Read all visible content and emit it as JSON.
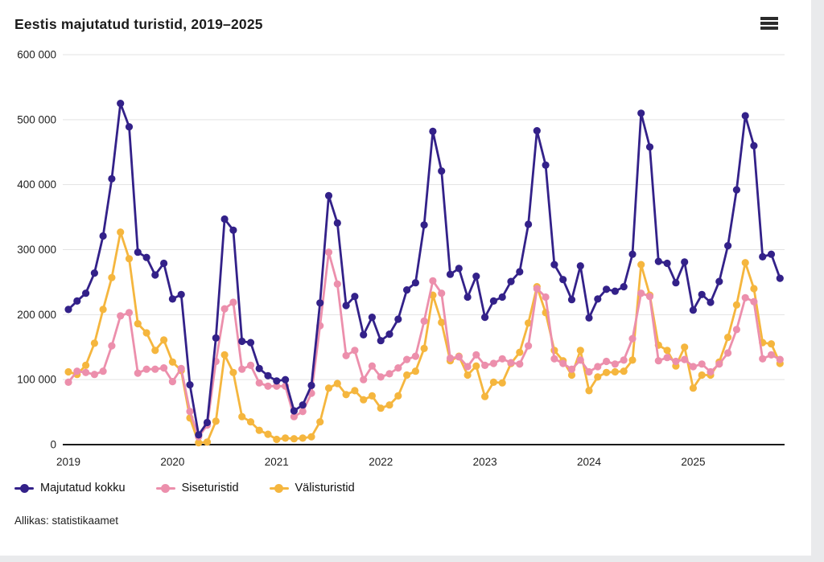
{
  "header": {
    "title": "Eestis majutatud turistid, 2019–2025",
    "menu_icon": "hamburger-icon"
  },
  "source_note": "Allikas: statistikaamet",
  "colors": {
    "total": "#332189",
    "domestic": "#ec8fac",
    "foreign": "#f5b63e",
    "grid": "#e3e3e3",
    "axis": "#1a1a1a",
    "tick_text": "#1f1f1f"
  },
  "legend": [
    {
      "label": "Majutatud kokku",
      "series": "total"
    },
    {
      "label": "Siseturistid",
      "series": "domestic"
    },
    {
      "label": "Välisturistid",
      "series": "foreign"
    }
  ],
  "chart_data": {
    "type": "line",
    "title": "Eestis majutatud turistid, 2019–2025",
    "x_unit": "month",
    "x_start": "2019-01",
    "x_end": "2025-11",
    "ylim": [
      0,
      600000
    ],
    "grid": "horizontal",
    "legend_position": "bottom",
    "y_ticks": [
      {
        "value": 0,
        "label": "0"
      },
      {
        "value": 100000,
        "label": "100 000"
      },
      {
        "value": 200000,
        "label": "200 000"
      },
      {
        "value": 300000,
        "label": "300 000"
      },
      {
        "value": 400000,
        "label": "400 000"
      },
      {
        "value": 500000,
        "label": "500 000"
      },
      {
        "value": 600000,
        "label": "600 000"
      }
    ],
    "x_ticks": [
      {
        "month_index": 0,
        "label": "2019"
      },
      {
        "month_index": 12,
        "label": "2020"
      },
      {
        "month_index": 24,
        "label": "2021"
      },
      {
        "month_index": 36,
        "label": "2022"
      },
      {
        "month_index": 48,
        "label": "2023"
      },
      {
        "month_index": 60,
        "label": "2024"
      },
      {
        "month_index": 72,
        "label": "2025"
      }
    ],
    "series": [
      {
        "name": "Majutatud kokku",
        "key": "total",
        "values": [
          208000,
          221000,
          233000,
          264000,
          321000,
          409000,
          525000,
          489000,
          296000,
          288000,
          261000,
          279000,
          224000,
          231000,
          92000,
          15000,
          34000,
          164000,
          347000,
          330000,
          159000,
          157000,
          117000,
          106000,
          98000,
          100000,
          52000,
          61000,
          91000,
          218000,
          383000,
          341000,
          214000,
          228000,
          169000,
          196000,
          160000,
          170000,
          193000,
          238000,
          249000,
          338000,
          482000,
          421000,
          262000,
          271000,
          227000,
          259000,
          196000,
          221000,
          227000,
          251000,
          266000,
          339000,
          483000,
          430000,
          277000,
          254000,
          223000,
          275000,
          195000,
          224000,
          239000,
          236000,
          243000,
          293000,
          510000,
          458000,
          282000,
          279000,
          249000,
          281000,
          207000,
          231000,
          219000,
          251000,
          306000,
          392000,
          506000,
          460000,
          289000,
          293000,
          256000
        ]
      },
      {
        "name": "Siseturistid",
        "key": "domestic",
        "values": [
          96000,
          113000,
          111000,
          108000,
          113000,
          152000,
          198000,
          203000,
          110000,
          116000,
          116000,
          118000,
          97000,
          117000,
          51000,
          12000,
          30000,
          128000,
          209000,
          219000,
          116000,
          122000,
          95000,
          90000,
          90000,
          90000,
          43000,
          51000,
          79000,
          183000,
          296000,
          247000,
          137000,
          145000,
          100000,
          121000,
          104000,
          109000,
          118000,
          131000,
          136000,
          190000,
          252000,
          233000,
          133000,
          135000,
          120000,
          138000,
          122000,
          125000,
          132000,
          126000,
          124000,
          152000,
          240000,
          227000,
          132000,
          125000,
          116000,
          130000,
          112000,
          120000,
          128000,
          124000,
          130000,
          163000,
          233000,
          228000,
          129000,
          134000,
          128000,
          131000,
          120000,
          124000,
          112000,
          124000,
          141000,
          177000,
          226000,
          220000,
          132000,
          138000,
          131000
        ]
      },
      {
        "name": "Välisturistid",
        "key": "foreign",
        "values": [
          112000,
          108000,
          122000,
          156000,
          208000,
          257000,
          327000,
          286000,
          186000,
          172000,
          145000,
          161000,
          127000,
          114000,
          41000,
          3000,
          4000,
          36000,
          138000,
          111000,
          43000,
          35000,
          22000,
          16000,
          8000,
          10000,
          9000,
          10000,
          12000,
          35000,
          87000,
          94000,
          77000,
          83000,
          69000,
          75000,
          56000,
          61000,
          75000,
          107000,
          113000,
          148000,
          230000,
          188000,
          129000,
          136000,
          107000,
          121000,
          74000,
          96000,
          95000,
          125000,
          142000,
          187000,
          243000,
          203000,
          145000,
          129000,
          107000,
          145000,
          83000,
          104000,
          111000,
          112000,
          113000,
          130000,
          277000,
          230000,
          153000,
          145000,
          121000,
          150000,
          87000,
          107000,
          107000,
          127000,
          165000,
          215000,
          280000,
          240000,
          157000,
          155000,
          125000
        ]
      }
    ]
  }
}
